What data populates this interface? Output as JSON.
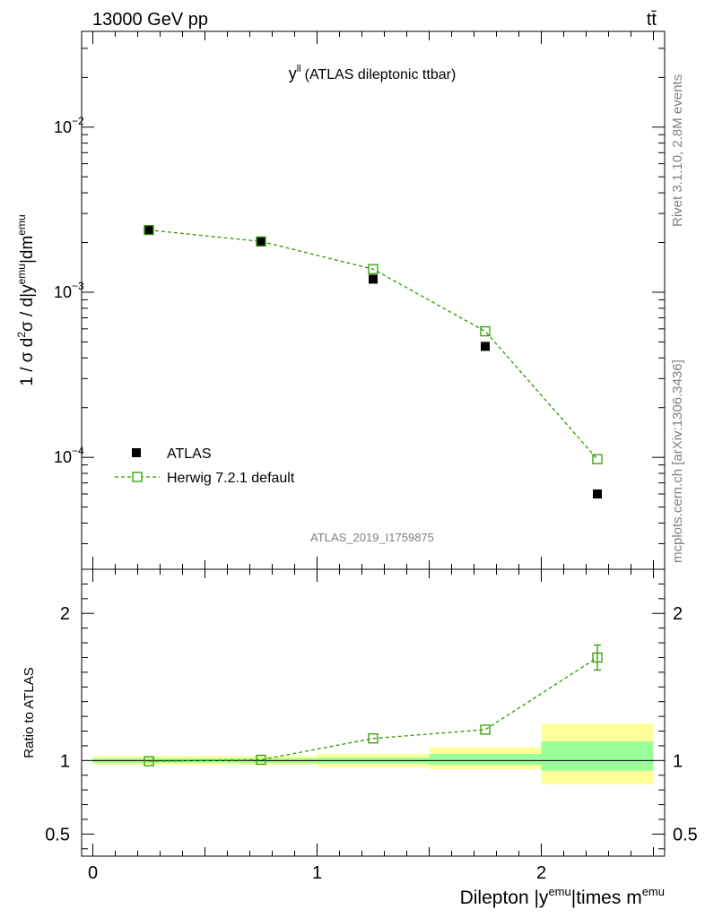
{
  "header": {
    "energy_label": "13000 GeV pp",
    "process_label": "tt̄"
  },
  "side_labels": {
    "rivet": "Rivet 3.1.10,  2.8M events",
    "mcplots": "mcplots.cern.ch [arXiv:1306.3436]"
  },
  "analysis_id": "ATLAS_2019_I1759875",
  "chart_data": [
    {
      "type": "scatter",
      "title": "y^ll (ATLAS dileptonic ttbar)",
      "title_main": "y",
      "title_sup": "ll",
      "title_rest": "(ATLAS dileptonic ttbar)",
      "ylabel": "1 / σ d²σ / d|y^emu|dm^emu",
      "yscale": "log",
      "ylim": [
        2.1e-05,
        0.038
      ],
      "xlim": [
        -0.05,
        2.55
      ],
      "yticks": [
        {
          "value": 0.0001,
          "base": "10",
          "exp": "−4"
        },
        {
          "value": 0.001,
          "base": "10",
          "exp": "−3"
        },
        {
          "value": 0.01,
          "base": "10",
          "exp": "−2"
        }
      ],
      "x": [
        0.25,
        0.75,
        1.25,
        1.75,
        2.25
      ],
      "series": [
        {
          "name": "ATLAS",
          "values": [
            0.00238,
            0.00202,
            0.0012,
            0.00047,
            6e-05
          ],
          "color": "#000000",
          "marker": "filled-square"
        },
        {
          "name": "Herwig 7.2.1 default",
          "values": [
            0.00238,
            0.00203,
            0.00138,
            0.00058,
            9.75e-05
          ],
          "color": "#339900",
          "marker": "open-square",
          "line": "dashed"
        }
      ],
      "legend": {
        "position": "lower-left"
      }
    },
    {
      "type": "scatter",
      "ylabel": "Ratio to ATLAS",
      "xlabel": "Dilepton |y^emu|times m^emu",
      "xlabel_parts": [
        "Dilepton |y",
        "emu",
        "|times m",
        "emu"
      ],
      "ylim": [
        0.35,
        2.3
      ],
      "xlim": [
        -0.05,
        2.55
      ],
      "yticks": [
        0.5,
        1,
        2
      ],
      "ytick_labels": [
        "0.5",
        "1",
        "2"
      ],
      "xticks": [
        0,
        1,
        2
      ],
      "xtick_labels": [
        "0",
        "1",
        "2"
      ],
      "bands": [
        {
          "x0": 0,
          "x1": 0.5,
          "yellow": [
            0.97,
            1.03
          ],
          "green": [
            0.985,
            1.015
          ]
        },
        {
          "x0": 0.5,
          "x1": 1.0,
          "yellow": [
            0.97,
            1.03
          ],
          "green": [
            0.985,
            1.015
          ]
        },
        {
          "x0": 1.0,
          "x1": 1.5,
          "yellow": [
            0.955,
            1.045
          ],
          "green": [
            0.98,
            1.02
          ]
        },
        {
          "x0": 1.5,
          "x1": 2.0,
          "yellow": [
            0.94,
            1.09
          ],
          "green": [
            0.97,
            1.045
          ]
        },
        {
          "x0": 2.0,
          "x1": 2.5,
          "yellow": [
            0.84,
            1.25
          ],
          "green": [
            0.93,
            1.13
          ]
        }
      ],
      "x": [
        0.25,
        0.75,
        1.25,
        1.75,
        2.25
      ],
      "series": [
        {
          "name": "Herwig 7.2.1 default",
          "values": [
            0.995,
            1.005,
            1.15,
            1.21,
            1.7
          ],
          "errors": [
            0,
            0,
            0,
            0,
            0.085
          ],
          "color": "#339900",
          "marker": "open-square",
          "line": "dashed"
        }
      ],
      "reference_line": 1
    }
  ]
}
